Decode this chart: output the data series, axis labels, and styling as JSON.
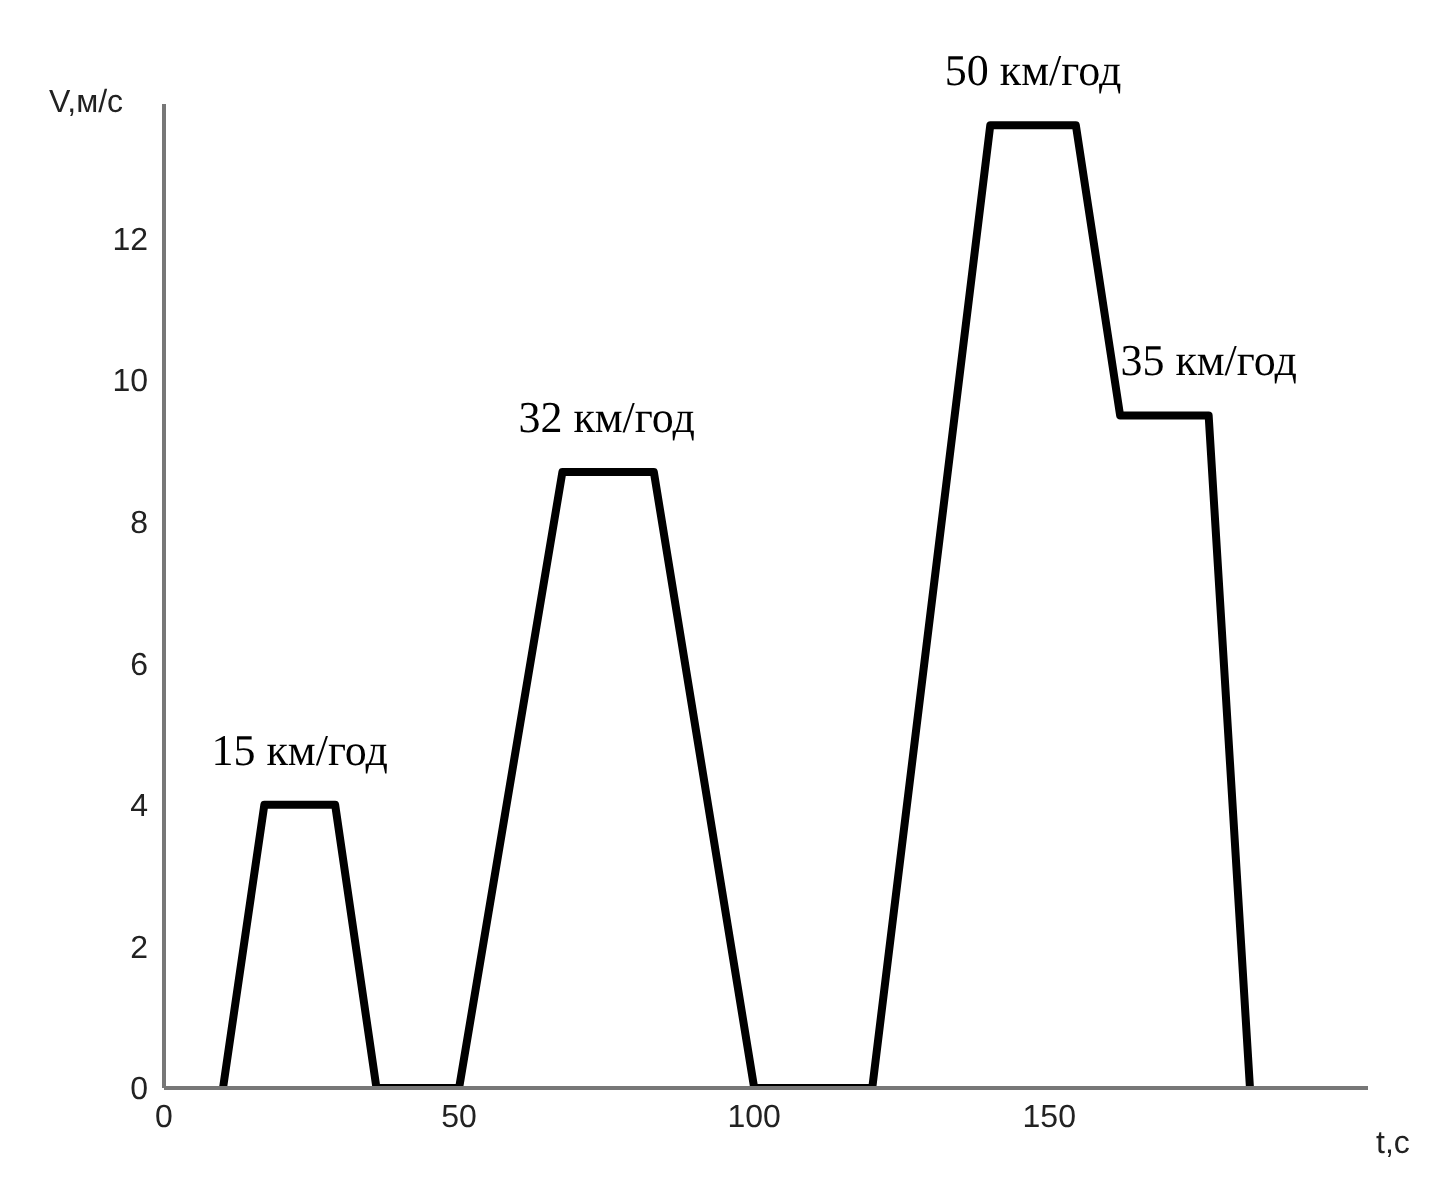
{
  "chart_data": {
    "type": "line",
    "xlabel": "t,с",
    "ylabel": "V,м/с",
    "x": [
      10,
      17,
      29,
      36,
      50,
      67.5,
      83,
      100,
      120,
      140,
      154.5,
      162,
      177,
      184
    ],
    "series": [
      {
        "color": "#000000",
        "values": [
          0,
          4,
          4,
          0,
          0,
          8.7,
          8.7,
          0,
          0,
          13.6,
          13.6,
          9.5,
          9.5,
          0
        ]
      }
    ],
    "xlim": [
      0,
      204
    ],
    "xticks": [
      0,
      50,
      100,
      150
    ],
    "ylim": [
      0,
      13.9
    ],
    "yticks": [
      0,
      2,
      4,
      6,
      8,
      10,
      12
    ],
    "grid": false,
    "legend": false,
    "marker": "none",
    "line_style": "solid",
    "annotations": [
      {
        "text": "15 км/год",
        "x": 23,
        "y": 4
      },
      {
        "text": "32 км/год",
        "x": 75,
        "y": 8.7
      },
      {
        "text": "50 км/год",
        "x": 147.25,
        "y": 13.6
      },
      {
        "text": "35 км/год",
        "x": 177,
        "y": 9.5
      }
    ]
  }
}
